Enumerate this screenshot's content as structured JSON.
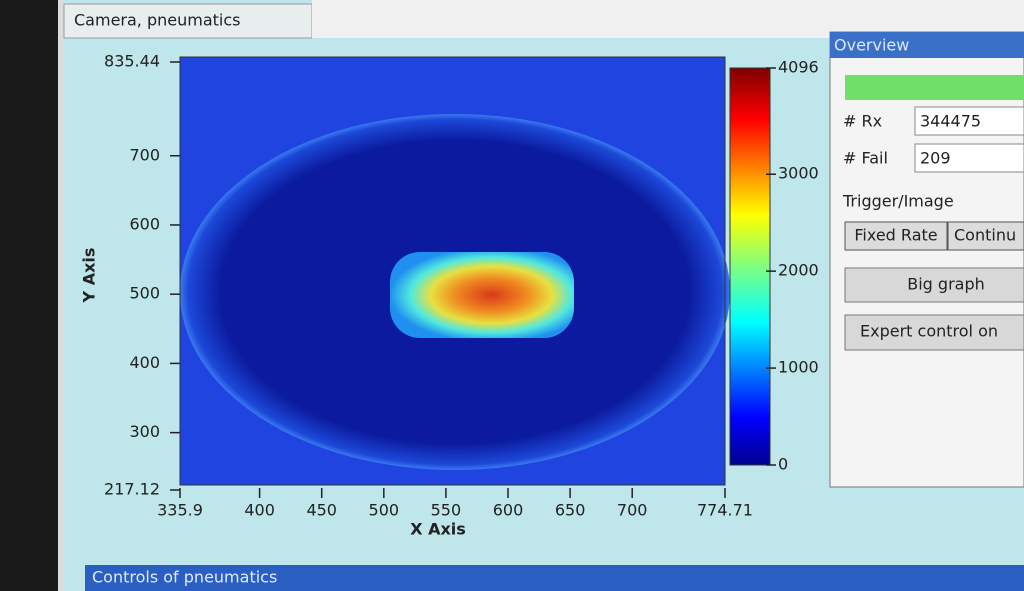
{
  "tab": "Camera, pneumatics",
  "chart_data": {
    "type": "heatmap",
    "x_label": "X Axis",
    "y_label": "Y Axis",
    "xlim": [
      335.9,
      774.71
    ],
    "xticks": [
      335.9,
      400,
      450,
      500,
      550,
      600,
      650,
      700,
      774.71
    ],
    "ylim": [
      217.12,
      835.44
    ],
    "yticks": [
      217.12,
      300,
      400,
      500,
      600,
      700,
      835.44
    ],
    "zlim": [
      0,
      4096
    ],
    "zticks": [
      0,
      1000,
      2000,
      3000,
      4096
    ]
  },
  "overview": {
    "title": "Overview",
    "fields": [
      {
        "label": "# Rx",
        "value": "344475"
      },
      {
        "label": "# Fail",
        "value": "209"
      }
    ],
    "section": "Trigger/Image",
    "trigger_buttons": [
      "Fixed Rate",
      "Continu"
    ],
    "buttons": [
      "Big graph",
      "Expert control on"
    ]
  },
  "bottom_panel": "Controls of pneumatics"
}
